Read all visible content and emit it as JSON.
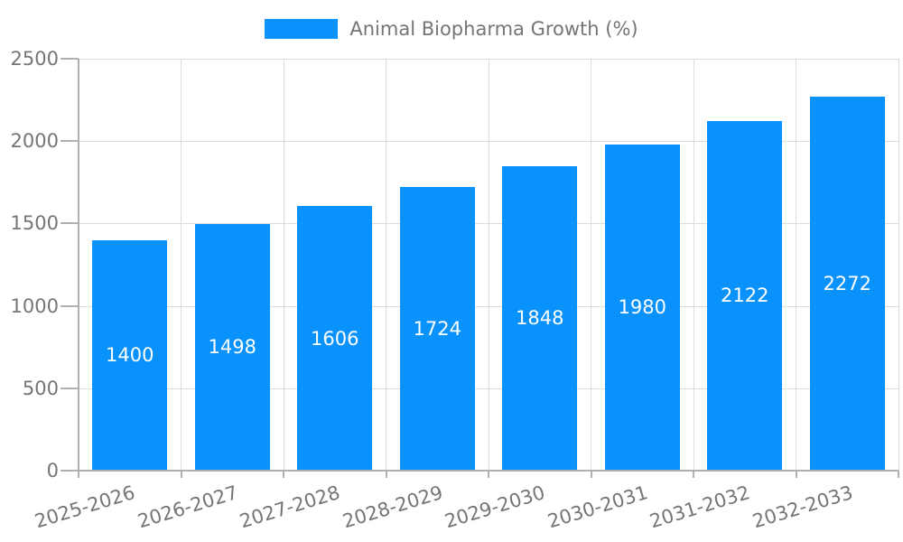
{
  "chart_data": {
    "type": "bar",
    "title": "Animal Biopharma Growth (%)",
    "categories": [
      "2025-2026",
      "2026-2027",
      "2027-2028",
      "2028-2029",
      "2029-2030",
      "2030-2031",
      "2031-2032",
      "2032-2033"
    ],
    "values": [
      1400,
      1498,
      1606,
      1724,
      1848,
      1980,
      2122,
      2272
    ],
    "series": [
      {
        "name": "Animal Biopharma Growth (%)",
        "values": [
          1400,
          1498,
          1606,
          1724,
          1848,
          1980,
          2122,
          2272
        ]
      }
    ],
    "xlabel": "",
    "ylabel": "",
    "ylim": [
      0,
      2500
    ],
    "yticks": [
      0,
      500,
      1000,
      1500,
      2000,
      2500
    ],
    "grid": true,
    "legend_position": "top-center",
    "value_labels": "centered-inside-bars-white",
    "x_label_rotation_deg": -17,
    "colors": {
      "bar": "#0992fb",
      "bar_label": "#ffffff",
      "grid": "#dcdcdc",
      "axis": "#b0b0b0",
      "text": "#757575",
      "background": "#ffffff"
    }
  }
}
